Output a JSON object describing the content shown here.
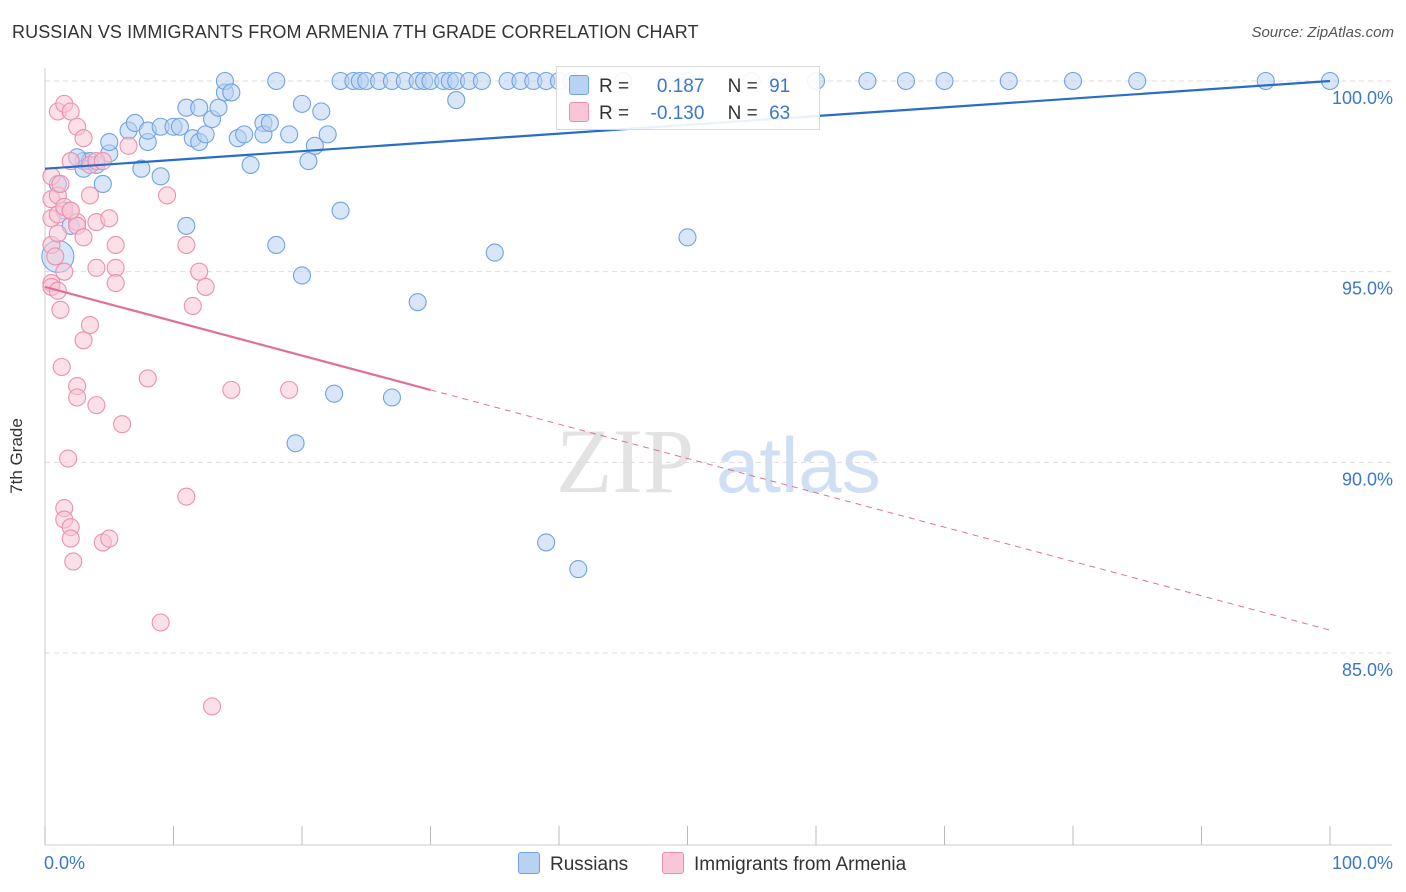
{
  "title": "RUSSIAN VS IMMIGRANTS FROM ARMENIA 7TH GRADE CORRELATION CHART",
  "source": "Source: ZipAtlas.com",
  "watermark": {
    "zip": "ZIP",
    "atlas": "atlas"
  },
  "stats": [
    {
      "r_label": "R =",
      "r_value": "0.187",
      "n_label": "N =",
      "n_value": "91",
      "color": "#6fa3e3",
      "fill": "#b9d1f2"
    },
    {
      "r_label": "R =",
      "r_value": "-0.130",
      "n_label": "N =",
      "n_value": "63",
      "color": "#ec8fae",
      "fill": "#f8c6d6"
    }
  ],
  "legend": [
    {
      "label": "Russians",
      "color": "#6fa3e3",
      "fill": "#b9d1f2"
    },
    {
      "label": "Immigrants from Armenia",
      "color": "#ec8fae",
      "fill": "#f8c6d6"
    }
  ],
  "chart_data": {
    "type": "scatter",
    "title": "RUSSIAN VS IMMIGRANTS FROM ARMENIA 7TH GRADE CORRELATION CHART",
    "xlabel": "",
    "ylabel": "7th Grade",
    "xlim": [
      0,
      100
    ],
    "ylim": [
      80.5,
      100.8
    ],
    "x_tick_labels": [
      "0.0%",
      "100.0%"
    ],
    "y_ticks": [
      85,
      90,
      95,
      100
    ],
    "y_tick_labels": [
      "85.0%",
      "90.0%",
      "95.0%",
      "100.0%"
    ],
    "grid": true,
    "series": [
      {
        "name": "Russians",
        "color": "#6fa3e3",
        "fill": "#b9d1f2",
        "trend": {
          "x": [
            0,
            100
          ],
          "y": [
            97.7,
            100.0
          ],
          "solid_to": 100
        },
        "points": [
          [
            1,
            97.3
          ],
          [
            1.5,
            96.6
          ],
          [
            2,
            96.2
          ],
          [
            1,
            95.4
          ],
          [
            3,
            97.9
          ],
          [
            3,
            97.7
          ],
          [
            4.5,
            97.3
          ],
          [
            3.5,
            97.9
          ],
          [
            4,
            97.8
          ],
          [
            5,
            98.1
          ],
          [
            5,
            98.4
          ],
          [
            6.5,
            98.7
          ],
          [
            7,
            98.9
          ],
          [
            7.5,
            97.7
          ],
          [
            8,
            98.4
          ],
          [
            8,
            98.7
          ],
          [
            9,
            97.5
          ],
          [
            9,
            98.8
          ],
          [
            10,
            98.8
          ],
          [
            10.5,
            98.8
          ],
          [
            11,
            96.2
          ],
          [
            11,
            99.3
          ],
          [
            11.5,
            98.5
          ],
          [
            12,
            99.3
          ],
          [
            12,
            98.4
          ],
          [
            12.5,
            98.6
          ],
          [
            13,
            99.0
          ],
          [
            13.5,
            99.3
          ],
          [
            14,
            99.7
          ],
          [
            14,
            100.0
          ],
          [
            14.5,
            99.7
          ],
          [
            15,
            98.5
          ],
          [
            15.5,
            98.6
          ],
          [
            16,
            97.8
          ],
          [
            17,
            98.9
          ],
          [
            17,
            98.6
          ],
          [
            17.5,
            98.9
          ],
          [
            18,
            95.7
          ],
          [
            18,
            100.0
          ],
          [
            19,
            98.6
          ],
          [
            19.5,
            90.5
          ],
          [
            20,
            94.9
          ],
          [
            20,
            99.4
          ],
          [
            20.5,
            97.9
          ],
          [
            21,
            98.3
          ],
          [
            21.5,
            99.2
          ],
          [
            22,
            98.6
          ],
          [
            22.5,
            91.8
          ],
          [
            23,
            96.6
          ],
          [
            23,
            100.0
          ],
          [
            24,
            100.0
          ],
          [
            24.5,
            100.0
          ],
          [
            25,
            100.0
          ],
          [
            26,
            100.0
          ],
          [
            27,
            91.7
          ],
          [
            27,
            100.0
          ],
          [
            28,
            100.0
          ],
          [
            29,
            94.2
          ],
          [
            29,
            100.0
          ],
          [
            29.5,
            100.0
          ],
          [
            30,
            100.0
          ],
          [
            31,
            100.0
          ],
          [
            31.5,
            100.0
          ],
          [
            32,
            100.0
          ],
          [
            32,
            99.5
          ],
          [
            33,
            100.0
          ],
          [
            34,
            100.0
          ],
          [
            35,
            95.5
          ],
          [
            36,
            100.0
          ],
          [
            37,
            100.0
          ],
          [
            38,
            100.0
          ],
          [
            39,
            100.0
          ],
          [
            39,
            87.9
          ],
          [
            40,
            100.0
          ],
          [
            41,
            100.0
          ],
          [
            41.5,
            87.2
          ],
          [
            45,
            100.0
          ],
          [
            50,
            100.0
          ],
          [
            50,
            95.9
          ],
          [
            55,
            100.0
          ],
          [
            57,
            100.0
          ],
          [
            60,
            100.0
          ],
          [
            64,
            100.0
          ],
          [
            67,
            100.0
          ],
          [
            70,
            100.0
          ],
          [
            75,
            100.0
          ],
          [
            80,
            100.0
          ],
          [
            85,
            100.0
          ],
          [
            95,
            100.0
          ],
          [
            100,
            100.0
          ],
          [
            2.5,
            98.0
          ]
        ]
      },
      {
        "name": "Immigrants from Armenia",
        "color": "#ec8fae",
        "fill": "#f8c6d6",
        "trend": {
          "x": [
            0,
            100
          ],
          "y": [
            94.6,
            85.6
          ],
          "solid_to": 30
        },
        "points": [
          [
            0.5,
            97.5
          ],
          [
            0.5,
            96.9
          ],
          [
            0.5,
            96.4
          ],
          [
            0.5,
            95.7
          ],
          [
            0.5,
            94.7
          ],
          [
            0.5,
            94.6
          ],
          [
            1,
            99.2
          ],
          [
            1,
            97.0
          ],
          [
            1,
            96.5
          ],
          [
            1,
            94.5
          ],
          [
            1.2,
            94.0
          ],
          [
            1.3,
            92.5
          ],
          [
            1.5,
            99.4
          ],
          [
            1.5,
            96.7
          ],
          [
            1.5,
            95.0
          ],
          [
            1.5,
            88.8
          ],
          [
            1.5,
            88.5
          ],
          [
            1.8,
            90.1
          ],
          [
            2,
            99.2
          ],
          [
            2,
            97.9
          ],
          [
            2,
            96.6
          ],
          [
            2,
            88.3
          ],
          [
            2,
            88.0
          ],
          [
            2.2,
            87.4
          ],
          [
            2.5,
            98.8
          ],
          [
            2.5,
            96.3
          ],
          [
            2.5,
            92.0
          ],
          [
            2.5,
            91.7
          ],
          [
            2.5,
            96.2
          ],
          [
            3,
            98.5
          ],
          [
            3,
            93.2
          ],
          [
            3.5,
            97.8
          ],
          [
            3.5,
            97.0
          ],
          [
            3.5,
            93.6
          ],
          [
            4,
            97.9
          ],
          [
            4,
            96.3
          ],
          [
            4,
            95.1
          ],
          [
            4,
            91.5
          ],
          [
            4.5,
            97.9
          ],
          [
            4.5,
            87.9
          ],
          [
            5,
            96.4
          ],
          [
            5,
            88.0
          ],
          [
            5.5,
            95.7
          ],
          [
            5.5,
            95.1
          ],
          [
            5.5,
            94.7
          ],
          [
            6,
            91.0
          ],
          [
            8,
            92.2
          ],
          [
            9,
            85.8
          ],
          [
            9.5,
            97.0
          ],
          [
            11,
            89.1
          ],
          [
            11,
            95.7
          ],
          [
            11.5,
            94.1
          ],
          [
            12,
            95.0
          ],
          [
            12.5,
            94.6
          ],
          [
            13,
            83.6
          ],
          [
            14.5,
            91.9
          ],
          [
            19,
            91.9
          ],
          [
            0.8,
            95.4
          ],
          [
            1,
            96.0
          ],
          [
            3,
            95.9
          ],
          [
            2,
            96.6
          ],
          [
            6.5,
            98.3
          ],
          [
            1.2,
            97.3
          ]
        ]
      }
    ]
  }
}
